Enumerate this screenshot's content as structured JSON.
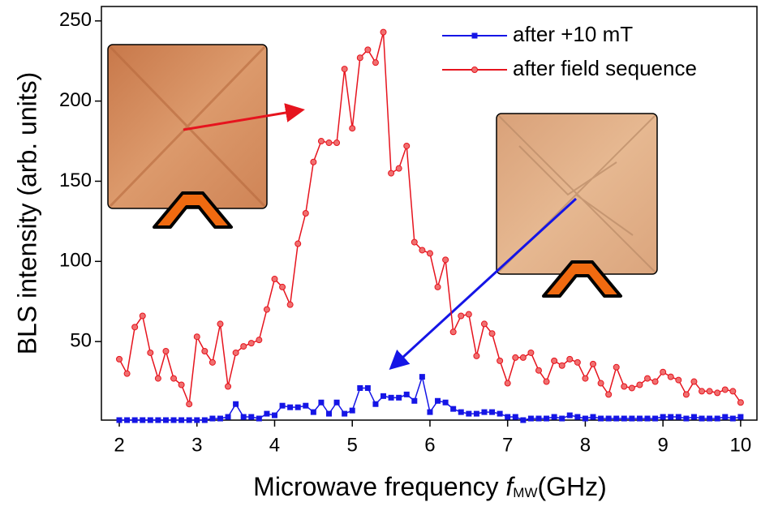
{
  "chart_data": {
    "type": "line",
    "xlabel": "Microwave frequency",
    "xlabel_symbol": "f",
    "xlabel_subscript": "MW",
    "xlabel_unit": "(GHz)",
    "ylabel": "BLS intensity (arb. units)",
    "x": [
      2.0,
      2.1,
      2.2,
      2.3,
      2.4,
      2.5,
      2.6,
      2.7,
      2.8,
      2.9,
      3.0,
      3.1,
      3.2,
      3.3,
      3.4,
      3.5,
      3.6,
      3.7,
      3.8,
      3.9,
      4.0,
      4.1,
      4.2,
      4.3,
      4.4,
      4.5,
      4.6,
      4.7,
      4.8,
      4.9,
      5.0,
      5.1,
      5.2,
      5.3,
      5.4,
      5.5,
      5.6,
      5.7,
      5.8,
      5.9,
      6.0,
      6.1,
      6.2,
      6.3,
      6.4,
      6.5,
      6.6,
      6.7,
      6.8,
      6.9,
      7.0,
      7.1,
      7.2,
      7.3,
      7.4,
      7.5,
      7.6,
      7.7,
      7.8,
      7.9,
      8.0,
      8.1,
      8.2,
      8.3,
      8.4,
      8.5,
      8.6,
      8.7,
      8.8,
      8.9,
      9.0,
      9.1,
      9.2,
      9.3,
      9.4,
      9.5,
      9.6,
      9.7,
      9.8,
      9.9,
      10.0
    ],
    "series": [
      {
        "name": "after +10 mT",
        "color": "#1515e6",
        "marker": "square",
        "values": [
          1,
          1,
          1,
          1,
          1,
          1,
          1,
          1,
          1,
          1,
          1,
          1,
          2,
          2,
          3,
          11,
          3,
          3,
          2,
          5,
          4,
          10,
          9,
          9,
          10,
          6,
          12,
          5,
          12,
          5,
          7,
          21,
          21,
          11,
          16,
          15,
          15,
          17,
          13,
          28,
          6,
          13,
          12,
          8,
          6,
          5,
          5,
          6,
          6,
          5,
          3,
          3,
          1,
          2,
          2,
          2,
          3,
          2,
          4,
          3,
          2,
          3,
          2,
          2,
          2,
          2,
          2,
          2,
          2,
          2,
          3,
          3,
          3,
          2,
          3,
          2,
          2,
          2,
          3,
          2,
          3
        ]
      },
      {
        "name": "after field sequence",
        "color": "#e6141e",
        "marker": "circle",
        "values": [
          39,
          30,
          59,
          66,
          43,
          27,
          44,
          27,
          23,
          11,
          53,
          44,
          37,
          61,
          22,
          43,
          47,
          49,
          51,
          70,
          89,
          84,
          73,
          111,
          130,
          162,
          175,
          174,
          174,
          220,
          183,
          227,
          232,
          224,
          243,
          155,
          158,
          172,
          112,
          107,
          105,
          84,
          101,
          56,
          66,
          67,
          41,
          61,
          55,
          38,
          24,
          40,
          40,
          43,
          32,
          25,
          38,
          35,
          39,
          37,
          27,
          36,
          24,
          17,
          34,
          22,
          21,
          23,
          27,
          25,
          31,
          28,
          26,
          17,
          25,
          19,
          19,
          18,
          20,
          19,
          12
        ]
      }
    ],
    "xlim": [
      1.77,
      10.21
    ],
    "ylim": [
      1,
      259
    ],
    "xticks": [
      2,
      3,
      4,
      5,
      6,
      7,
      8,
      9,
      10
    ],
    "yticks": [
      50,
      100,
      150,
      200,
      250
    ],
    "legend": "upper right"
  }
}
